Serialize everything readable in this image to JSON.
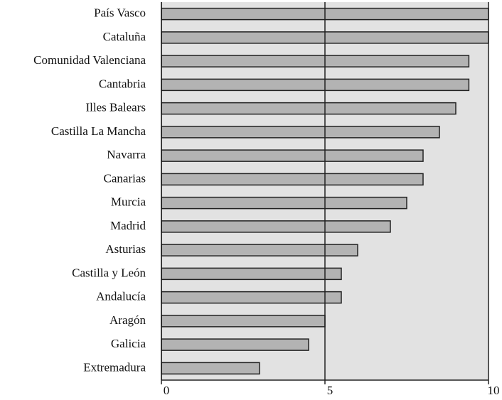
{
  "chart_data": {
    "type": "barh",
    "categories": [
      "País Vasco",
      "Cataluña",
      "Comunidad Valenciana",
      "Cantabria",
      "Illes Balears",
      "Castilla La Mancha",
      "Navarra",
      "Canarias",
      "Murcia",
      "Madrid",
      "Asturias",
      "Castilla y León",
      "Andalucía",
      "Aragón",
      "Galicia",
      "Extremadura"
    ],
    "values": [
      10.0,
      10.0,
      9.4,
      9.4,
      9.0,
      8.5,
      8.0,
      8.0,
      7.5,
      7.0,
      6.0,
      5.5,
      5.5,
      5.0,
      4.5,
      3.0
    ],
    "color": "#b3b3b3",
    "xlim": [
      0,
      10
    ],
    "xticks": [
      0,
      5,
      10
    ],
    "grid": true
  }
}
